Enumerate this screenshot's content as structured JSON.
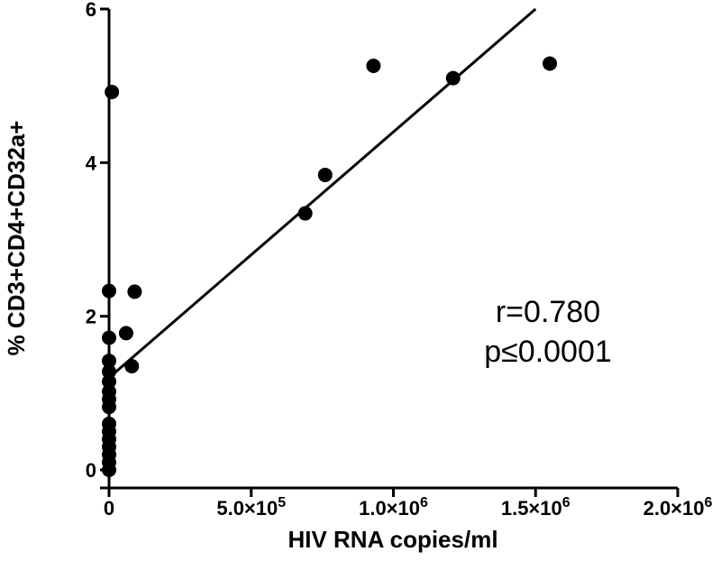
{
  "chart_data": {
    "type": "scatter",
    "title": "",
    "xlabel": "HIV RNA copies/ml",
    "ylabel": "% CD3+CD4+CD32a+",
    "xlim": [
      0,
      2000000
    ],
    "ylim": [
      0,
      6
    ],
    "x_ticks": [
      {
        "value": 0,
        "label": "0"
      },
      {
        "value": 500000,
        "label": "5.0×10",
        "exp": "5"
      },
      {
        "value": 1000000,
        "label": "1.0×10",
        "exp": "6"
      },
      {
        "value": 1500000,
        "label": "1.5×10",
        "exp": "6"
      },
      {
        "value": 2000000,
        "label": "2.0×10",
        "exp": "6"
      }
    ],
    "y_ticks": [
      {
        "value": 0,
        "label": "0"
      },
      {
        "value": 2,
        "label": "2"
      },
      {
        "value": 4,
        "label": "4"
      },
      {
        "value": 6,
        "label": "6"
      }
    ],
    "grid": false,
    "points": [
      {
        "x": 10000,
        "y": 4.92
      },
      {
        "x": 0,
        "y": 2.33
      },
      {
        "x": 0,
        "y": 1.72
      },
      {
        "x": 0,
        "y": 1.42
      },
      {
        "x": 0,
        "y": 1.28
      },
      {
        "x": 0,
        "y": 1.15
      },
      {
        "x": 0,
        "y": 1.02
      },
      {
        "x": 0,
        "y": 0.92
      },
      {
        "x": 0,
        "y": 0.82
      },
      {
        "x": 0,
        "y": 0.6
      },
      {
        "x": 0,
        "y": 0.5
      },
      {
        "x": 0,
        "y": 0.4
      },
      {
        "x": 0,
        "y": 0.3
      },
      {
        "x": 0,
        "y": 0.2
      },
      {
        "x": 0,
        "y": 0.1
      },
      {
        "x": 0,
        "y": 0.0
      },
      {
        "x": 60000,
        "y": 1.78
      },
      {
        "x": 90000,
        "y": 2.32
      },
      {
        "x": 80000,
        "y": 1.35
      },
      {
        "x": 690000,
        "y": 3.34
      },
      {
        "x": 760000,
        "y": 3.84
      },
      {
        "x": 930000,
        "y": 5.26
      },
      {
        "x": 1210000,
        "y": 5.1
      },
      {
        "x": 1550000,
        "y": 5.29
      }
    ],
    "fit_line": {
      "x": [
        0,
        1500000
      ],
      "y": [
        1.2,
        6.0
      ]
    },
    "annotations": [
      "r=0.780",
      "p≤0.0001"
    ]
  }
}
